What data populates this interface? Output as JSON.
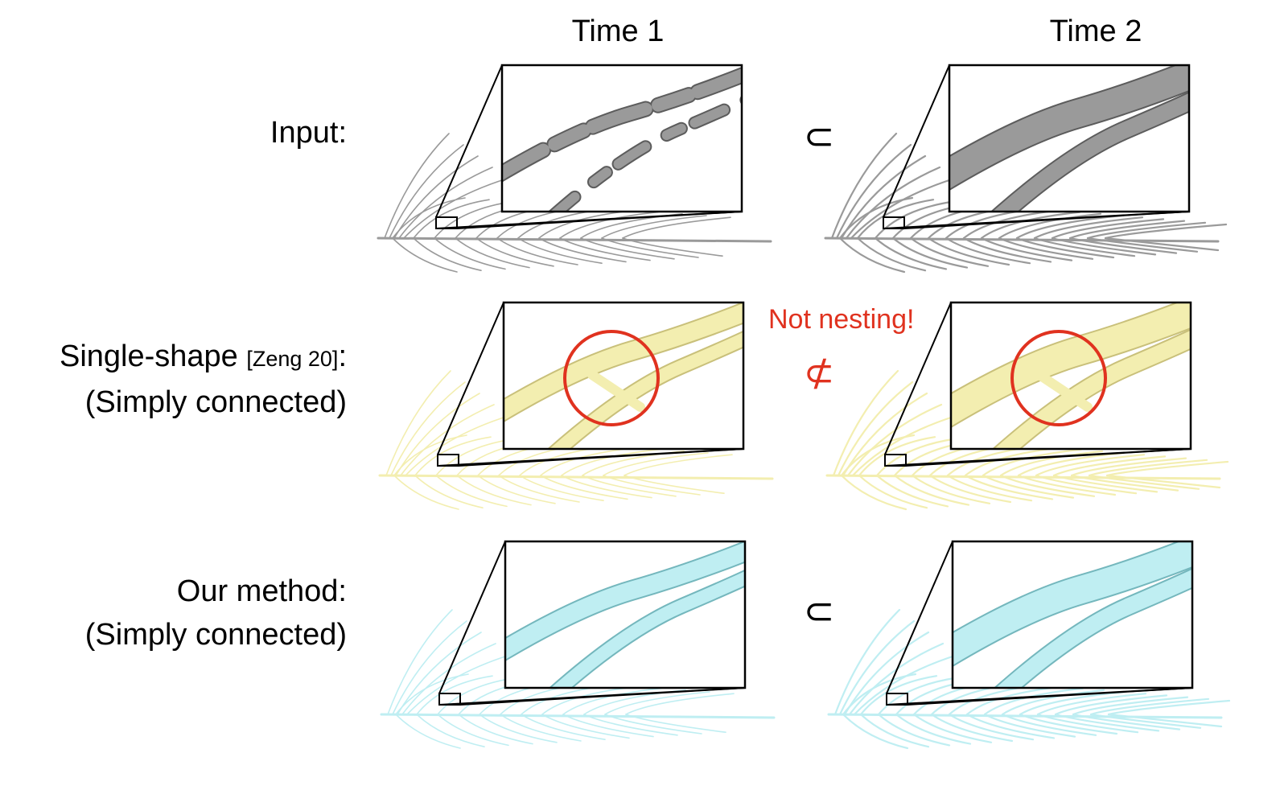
{
  "columns": {
    "time1": "Time 1",
    "time2": "Time 2"
  },
  "rows": {
    "input": {
      "label": "Input:",
      "relation": "⊂"
    },
    "single_shape": {
      "label": "Single-shape",
      "citation": "[Zeng 20]",
      "label_suffix": ":",
      "sublabel": "(Simply connected)",
      "relation": "⊄",
      "warning": "Not nesting!"
    },
    "our_method": {
      "label": "Our method:",
      "sublabel": "(Simply connected)",
      "relation": "⊂"
    }
  },
  "colors": {
    "input_gray": "#9a9a9a",
    "input_dark": "#5c5c5c",
    "single_yellow": "#f3eeb0",
    "single_yellow_dark": "#c9c07a",
    "ours_cyan": "#bfeef2",
    "ours_cyan_dark": "#74b7bd",
    "highlight_red": "#e0321f"
  }
}
